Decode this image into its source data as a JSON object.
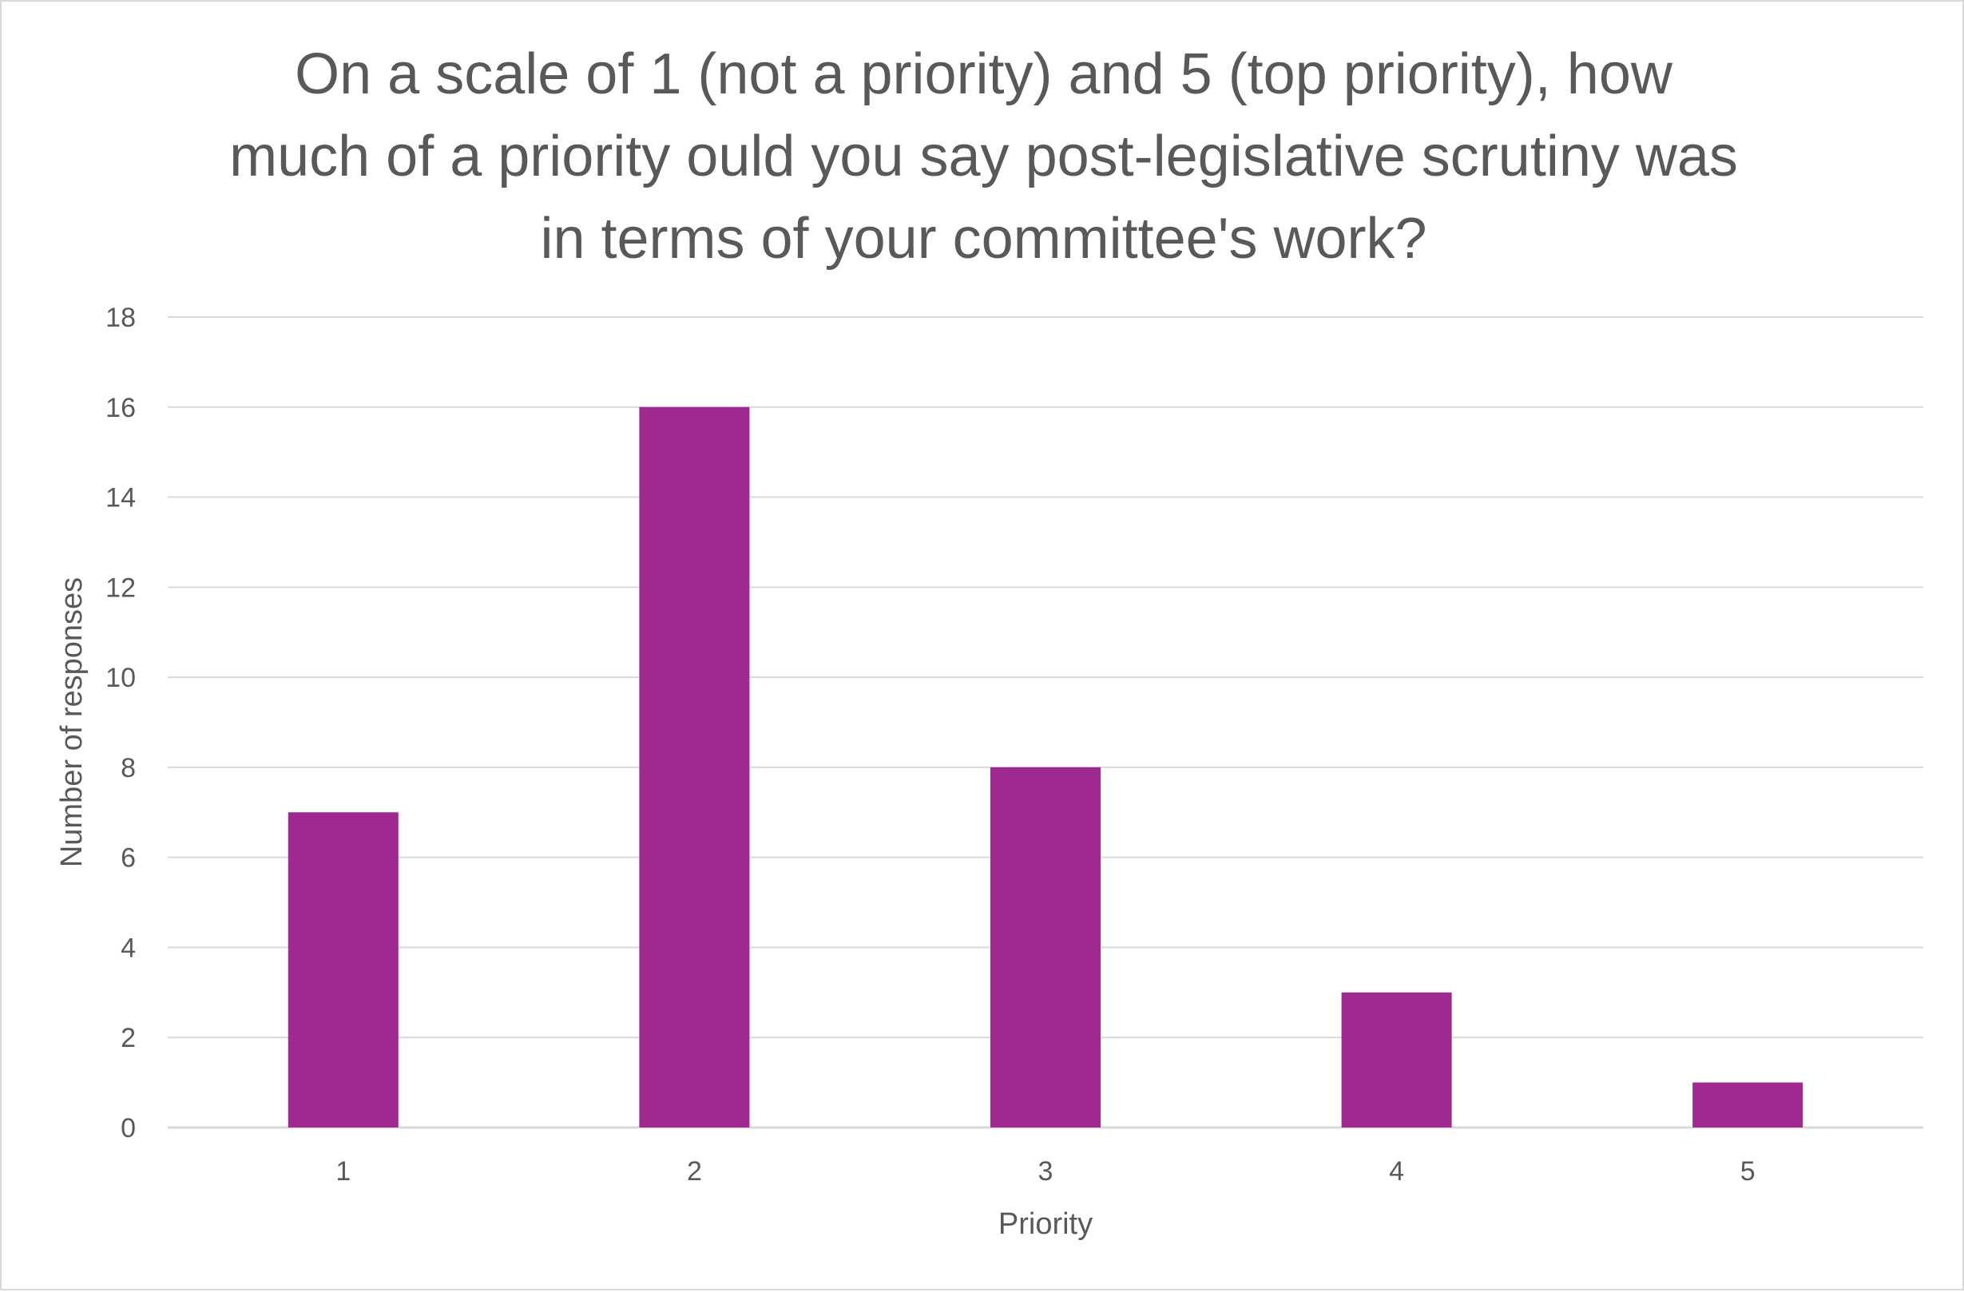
{
  "chart_data": {
    "type": "bar",
    "title_lines": [
      "On a scale of 1 (not a priority) and 5 (top priority), how",
      "much of a priority ould you say post-legislative scrutiny was",
      "in terms of your committee's work?"
    ],
    "categories": [
      "1",
      "2",
      "3",
      "4",
      "5"
    ],
    "values": [
      7,
      16,
      8,
      3,
      1
    ],
    "xlabel": "Priority",
    "ylabel": "Number of responses",
    "ylim": [
      0,
      18
    ],
    "yticks": [
      0,
      2,
      4,
      6,
      8,
      10,
      12,
      14,
      16,
      18
    ],
    "grid": true,
    "legend": "none",
    "bar_color": "#9E2A8F",
    "grid_color": "#d9d9d9",
    "text_color": "#595959"
  }
}
